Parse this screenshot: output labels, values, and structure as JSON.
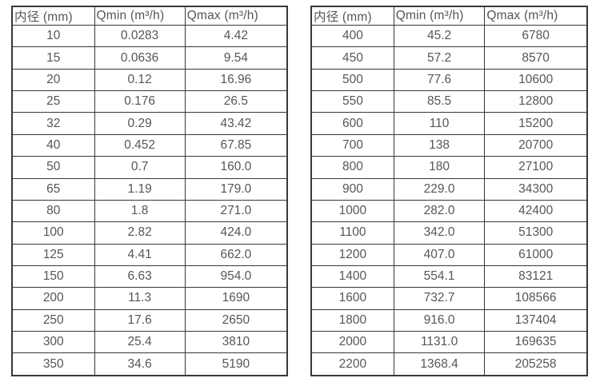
{
  "colors": {
    "background": "#ffffff",
    "table_border": "#383838",
    "text": "#565656"
  },
  "tables": [
    {
      "name": "diameter-flow-table-small",
      "headers": [
        "内径 (mm)",
        "Qmin (m³/h)",
        "Qmax (m³/h)"
      ],
      "rows": [
        [
          "10",
          "0.0283",
          "4.42"
        ],
        [
          "15",
          "0.0636",
          "9.54"
        ],
        [
          "20",
          "0.12",
          "16.96"
        ],
        [
          "25",
          "0.176",
          "26.5"
        ],
        [
          "32",
          "0.29",
          "43.42"
        ],
        [
          "40",
          "0.452",
          "67.85"
        ],
        [
          "50",
          "0.7",
          "160.0"
        ],
        [
          "65",
          "1.19",
          "179.0"
        ],
        [
          "80",
          "1.8",
          "271.0"
        ],
        [
          "100",
          "2.82",
          "424.0"
        ],
        [
          "125",
          "4.41",
          "662.0"
        ],
        [
          "150",
          "6.63",
          "954.0"
        ],
        [
          "200",
          "11.3",
          "1690"
        ],
        [
          "250",
          "17.6",
          "2650"
        ],
        [
          "300",
          "25.4",
          "3810"
        ],
        [
          "350",
          "34.6",
          "5190"
        ]
      ]
    },
    {
      "name": "diameter-flow-table-large",
      "headers": [
        "内径 (mm)",
        "Qmin (m³/h)",
        "Qmax (m³/h)"
      ],
      "rows": [
        [
          "400",
          "45.2",
          "6780"
        ],
        [
          "450",
          "57.2",
          "8570"
        ],
        [
          "500",
          "77.6",
          "10600"
        ],
        [
          "550",
          "85.5",
          "12800"
        ],
        [
          "600",
          "110",
          "15200"
        ],
        [
          "700",
          "138",
          "20700"
        ],
        [
          "800",
          "180",
          "27100"
        ],
        [
          "900",
          "229.0",
          "34300"
        ],
        [
          "1000",
          "282.0",
          "42400"
        ],
        [
          "1100",
          "342.0",
          "51300"
        ],
        [
          "1200",
          "407.0",
          "61000"
        ],
        [
          "1400",
          "554.1",
          "83121"
        ],
        [
          "1600",
          "732.7",
          "108566"
        ],
        [
          "1800",
          "916.0",
          "137404"
        ],
        [
          "2000",
          "1131.0",
          "169635"
        ],
        [
          "2200",
          "1368.4",
          "205258"
        ]
      ]
    }
  ]
}
